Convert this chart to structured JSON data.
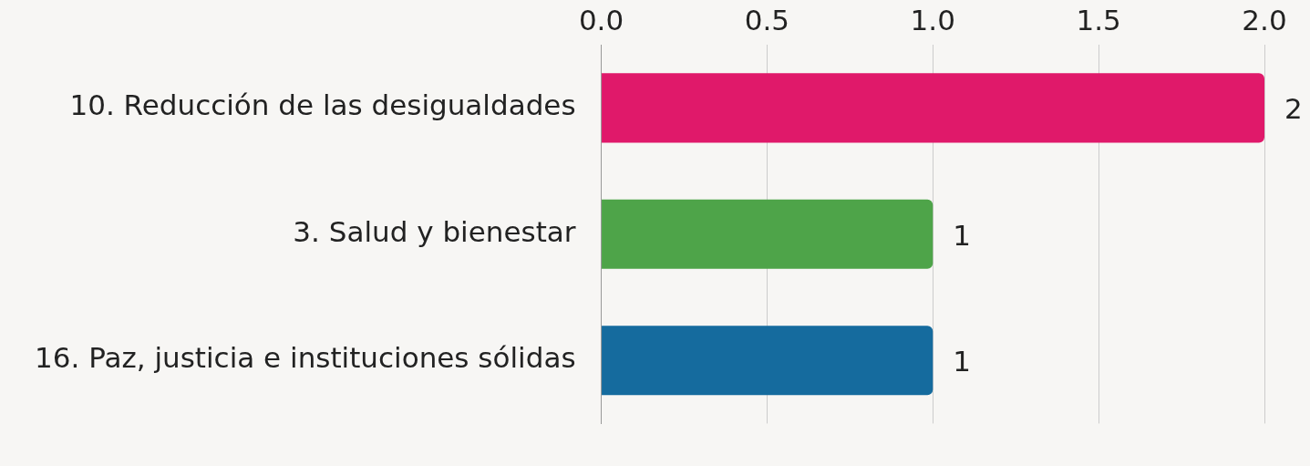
{
  "chart_data": {
    "type": "bar",
    "orientation": "horizontal",
    "categories": [
      "10. Reducción de las desigualdades",
      "3. Salud y bienestar",
      "16. Paz, justicia e instituciones sólidas"
    ],
    "values": [
      2,
      1,
      1
    ],
    "colors": [
      "#e0196a",
      "#4ea449",
      "#156b9e"
    ],
    "xlim": [
      0,
      2
    ],
    "xticks": [
      {
        "value": 0,
        "label": "0.0"
      },
      {
        "value": 0.5,
        "label": "0.5"
      },
      {
        "value": 1,
        "label": "1.0"
      },
      {
        "value": 1.5,
        "label": "1.5"
      },
      {
        "value": 2,
        "label": "2.0"
      }
    ],
    "grid": "x",
    "data_labels": true,
    "legend": false
  }
}
